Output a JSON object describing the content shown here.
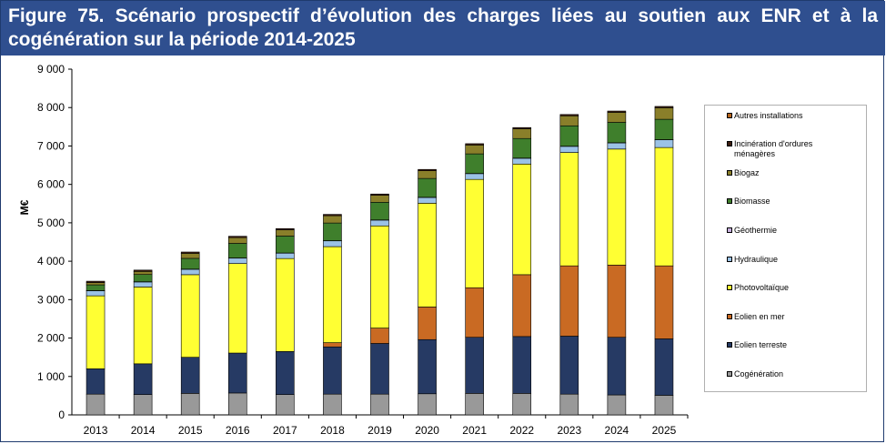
{
  "title": "Figure 75. Scénario prospectif d’évolution des charges liées au soutien aux ENR et à la cogénération sur la période 2014-2025",
  "chart_data": {
    "type": "bar",
    "stacked": true,
    "ylabel": "M€",
    "ylim": [
      0,
      9000
    ],
    "yticks": [
      0,
      1000,
      2000,
      3000,
      4000,
      5000,
      6000,
      7000,
      8000,
      9000
    ],
    "ytick_labels": [
      "0",
      "1 000",
      "2 000",
      "3 000",
      "4 000",
      "5 000",
      "6 000",
      "7 000",
      "8 000",
      "9 000"
    ],
    "categories": [
      "2013",
      "2014",
      "2015",
      "2016",
      "2017",
      "2018",
      "2019",
      "2020",
      "2021",
      "2022",
      "2023",
      "2024",
      "2025"
    ],
    "series": [
      {
        "name": "Cogénération",
        "color": "#999999",
        "values": [
          540,
          530,
          560,
          570,
          530,
          540,
          540,
          550,
          560,
          560,
          540,
          520,
          510
        ]
      },
      {
        "name": "Eolien terreste",
        "color": "#263a64",
        "values": [
          660,
          800,
          940,
          1040,
          1120,
          1230,
          1320,
          1410,
          1460,
          1480,
          1510,
          1500,
          1470
        ]
      },
      {
        "name": "Eolien en mer",
        "color": "#c96a23",
        "values": [
          0,
          0,
          0,
          0,
          0,
          110,
          400,
          850,
          1290,
          1610,
          1830,
          1880,
          1900
        ]
      },
      {
        "name": "Photovoltaïque",
        "color": "#ffff33",
        "values": [
          1900,
          2000,
          2150,
          2330,
          2420,
          2500,
          2660,
          2700,
          2820,
          2880,
          2950,
          3020,
          3080
        ]
      },
      {
        "name": "Hydraulique",
        "color": "#9bc2e6",
        "values": [
          130,
          130,
          140,
          140,
          140,
          150,
          150,
          150,
          150,
          150,
          160,
          160,
          200
        ]
      },
      {
        "name": "Géothermie",
        "color": "#c7b0de",
        "values": [
          5,
          5,
          5,
          5,
          5,
          5,
          5,
          5,
          5,
          5,
          5,
          5,
          5
        ]
      },
      {
        "name": "Biomasse",
        "color": "#3f7f2c",
        "values": [
          150,
          190,
          280,
          380,
          440,
          460,
          460,
          490,
          510,
          510,
          530,
          530,
          530
        ]
      },
      {
        "name": "Biogaz",
        "color": "#8a7f2a",
        "values": [
          60,
          80,
          130,
          150,
          160,
          190,
          180,
          200,
          230,
          250,
          260,
          260,
          300
        ]
      },
      {
        "name": "Incinération d'ordures ménagères",
        "color": "#3d1d10",
        "values": [
          35,
          35,
          35,
          35,
          35,
          35,
          35,
          35,
          35,
          35,
          35,
          35,
          35
        ]
      },
      {
        "name": "Autres installations",
        "color": "#b5651d",
        "values": [
          0,
          0,
          0,
          0,
          0,
          0,
          0,
          0,
          0,
          0,
          0,
          0,
          0
        ]
      }
    ],
    "legend_order": [
      "Autres installations",
      "Incinération d'ordures ménagères",
      "Biogaz",
      "Biomasse",
      "Géothermie",
      "Hydraulique",
      "Photovoltaïque",
      "Eolien en mer",
      "Eolien terreste",
      "Cogénération"
    ],
    "legend_labels": [
      [
        "Autres installations"
      ],
      [
        "Incinération d'ordures",
        "ménagères"
      ],
      [
        "Biogaz"
      ],
      [
        "Biomasse"
      ],
      [
        "Géothermie"
      ],
      [
        "Hydraulique"
      ],
      [
        "Photovoltaïque"
      ],
      [
        "Eolien en mer"
      ],
      [
        "Eolien terreste"
      ],
      [
        "Cogénération"
      ]
    ],
    "legend_placement": "right",
    "grid": false
  }
}
